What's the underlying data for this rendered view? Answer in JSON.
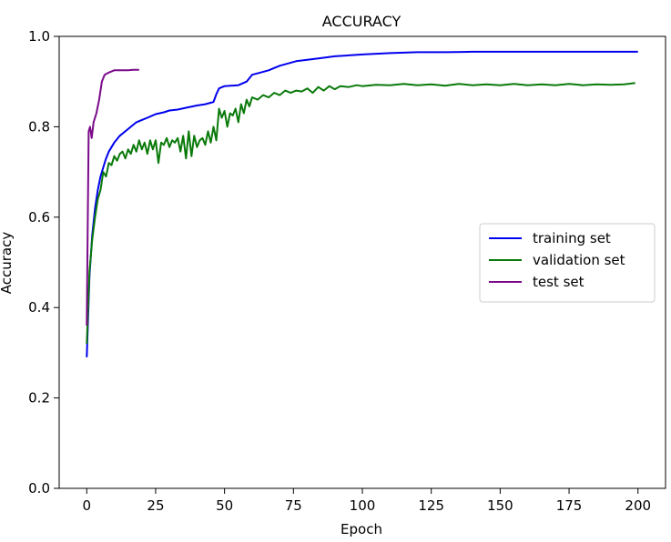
{
  "chart_data": {
    "type": "line",
    "title": "ACCURACY",
    "xlabel": "Epoch",
    "ylabel": "Accuracy",
    "xlim": [
      -10,
      210
    ],
    "ylim": [
      0.0,
      1.0
    ],
    "xticks": [
      "0",
      "25",
      "50",
      "75",
      "100",
      "125",
      "150",
      "175",
      "200"
    ],
    "yticks": [
      "0.0",
      "0.2",
      "0.4",
      "0.6",
      "0.8",
      "1.0"
    ],
    "legend_position": "center-right",
    "grid": false,
    "series": [
      {
        "name": "training set",
        "color": "#0000ee",
        "points": [
          [
            0,
            0.29
          ],
          [
            1,
            0.47
          ],
          [
            2,
            0.56
          ],
          [
            3,
            0.62
          ],
          [
            4,
            0.66
          ],
          [
            5,
            0.69
          ],
          [
            6,
            0.71
          ],
          [
            7,
            0.73
          ],
          [
            8,
            0.745
          ],
          [
            10,
            0.765
          ],
          [
            12,
            0.78
          ],
          [
            15,
            0.795
          ],
          [
            18,
            0.81
          ],
          [
            20,
            0.815
          ],
          [
            22,
            0.82
          ],
          [
            25,
            0.828
          ],
          [
            28,
            0.832
          ],
          [
            30,
            0.836
          ],
          [
            33,
            0.838
          ],
          [
            36,
            0.842
          ],
          [
            40,
            0.847
          ],
          [
            43,
            0.85
          ],
          [
            46,
            0.855
          ],
          [
            47,
            0.872
          ],
          [
            48,
            0.885
          ],
          [
            50,
            0.89
          ],
          [
            55,
            0.892
          ],
          [
            58,
            0.9
          ],
          [
            60,
            0.915
          ],
          [
            63,
            0.92
          ],
          [
            66,
            0.925
          ],
          [
            70,
            0.935
          ],
          [
            73,
            0.94
          ],
          [
            76,
            0.945
          ],
          [
            80,
            0.948
          ],
          [
            85,
            0.952
          ],
          [
            90,
            0.956
          ],
          [
            95,
            0.958
          ],
          [
            100,
            0.96
          ],
          [
            110,
            0.963
          ],
          [
            120,
            0.965
          ],
          [
            130,
            0.965
          ],
          [
            140,
            0.966
          ],
          [
            150,
            0.966
          ],
          [
            160,
            0.966
          ],
          [
            170,
            0.966
          ],
          [
            180,
            0.966
          ],
          [
            190,
            0.966
          ],
          [
            200,
            0.966
          ]
        ]
      },
      {
        "name": "validation set",
        "color": "#0a7a0a",
        "points": [
          [
            0,
            0.32
          ],
          [
            1,
            0.48
          ],
          [
            2,
            0.55
          ],
          [
            3,
            0.6
          ],
          [
            4,
            0.64
          ],
          [
            5,
            0.66
          ],
          [
            6,
            0.7
          ],
          [
            7,
            0.69
          ],
          [
            8,
            0.72
          ],
          [
            9,
            0.715
          ],
          [
            10,
            0.735
          ],
          [
            11,
            0.725
          ],
          [
            12,
            0.74
          ],
          [
            13,
            0.745
          ],
          [
            14,
            0.73
          ],
          [
            15,
            0.75
          ],
          [
            16,
            0.74
          ],
          [
            17,
            0.76
          ],
          [
            18,
            0.745
          ],
          [
            19,
            0.77
          ],
          [
            20,
            0.75
          ],
          [
            21,
            0.765
          ],
          [
            22,
            0.74
          ],
          [
            23,
            0.77
          ],
          [
            24,
            0.75
          ],
          [
            25,
            0.77
          ],
          [
            26,
            0.72
          ],
          [
            27,
            0.765
          ],
          [
            28,
            0.76
          ],
          [
            29,
            0.775
          ],
          [
            30,
            0.755
          ],
          [
            31,
            0.77
          ],
          [
            32,
            0.765
          ],
          [
            33,
            0.775
          ],
          [
            34,
            0.745
          ],
          [
            35,
            0.78
          ],
          [
            36,
            0.73
          ],
          [
            37,
            0.79
          ],
          [
            38,
            0.735
          ],
          [
            39,
            0.78
          ],
          [
            40,
            0.755
          ],
          [
            41,
            0.77
          ],
          [
            42,
            0.775
          ],
          [
            43,
            0.76
          ],
          [
            44,
            0.79
          ],
          [
            45,
            0.765
          ],
          [
            46,
            0.8
          ],
          [
            47,
            0.77
          ],
          [
            48,
            0.84
          ],
          [
            49,
            0.82
          ],
          [
            50,
            0.835
          ],
          [
            51,
            0.8
          ],
          [
            52,
            0.83
          ],
          [
            53,
            0.825
          ],
          [
            54,
            0.84
          ],
          [
            55,
            0.81
          ],
          [
            56,
            0.85
          ],
          [
            57,
            0.83
          ],
          [
            58,
            0.86
          ],
          [
            59,
            0.845
          ],
          [
            60,
            0.865
          ],
          [
            62,
            0.86
          ],
          [
            64,
            0.87
          ],
          [
            66,
            0.865
          ],
          [
            68,
            0.875
          ],
          [
            70,
            0.87
          ],
          [
            72,
            0.88
          ],
          [
            74,
            0.875
          ],
          [
            76,
            0.88
          ],
          [
            78,
            0.878
          ],
          [
            80,
            0.885
          ],
          [
            82,
            0.875
          ],
          [
            84,
            0.888
          ],
          [
            86,
            0.88
          ],
          [
            88,
            0.89
          ],
          [
            90,
            0.883
          ],
          [
            92,
            0.89
          ],
          [
            95,
            0.888
          ],
          [
            98,
            0.892
          ],
          [
            100,
            0.89
          ],
          [
            105,
            0.893
          ],
          [
            110,
            0.892
          ],
          [
            115,
            0.895
          ],
          [
            120,
            0.892
          ],
          [
            125,
            0.894
          ],
          [
            130,
            0.891
          ],
          [
            135,
            0.895
          ],
          [
            140,
            0.892
          ],
          [
            145,
            0.894
          ],
          [
            150,
            0.892
          ],
          [
            155,
            0.895
          ],
          [
            160,
            0.892
          ],
          [
            165,
            0.894
          ],
          [
            170,
            0.892
          ],
          [
            175,
            0.895
          ],
          [
            180,
            0.892
          ],
          [
            185,
            0.894
          ],
          [
            190,
            0.893
          ],
          [
            195,
            0.894
          ],
          [
            199,
            0.897
          ]
        ]
      },
      {
        "name": "test set",
        "color": "#7a0a8a",
        "points": [
          [
            0,
            0.36
          ],
          [
            0.3,
            0.55
          ],
          [
            0.7,
            0.79
          ],
          [
            1.2,
            0.8
          ],
          [
            1.8,
            0.775
          ],
          [
            2.5,
            0.81
          ],
          [
            3.5,
            0.83
          ],
          [
            4.5,
            0.86
          ],
          [
            5.5,
            0.9
          ],
          [
            6.5,
            0.915
          ],
          [
            8,
            0.92
          ],
          [
            10,
            0.925
          ],
          [
            12,
            0.925
          ],
          [
            15,
            0.925
          ],
          [
            17,
            0.926
          ],
          [
            19,
            0.926
          ]
        ]
      }
    ]
  }
}
